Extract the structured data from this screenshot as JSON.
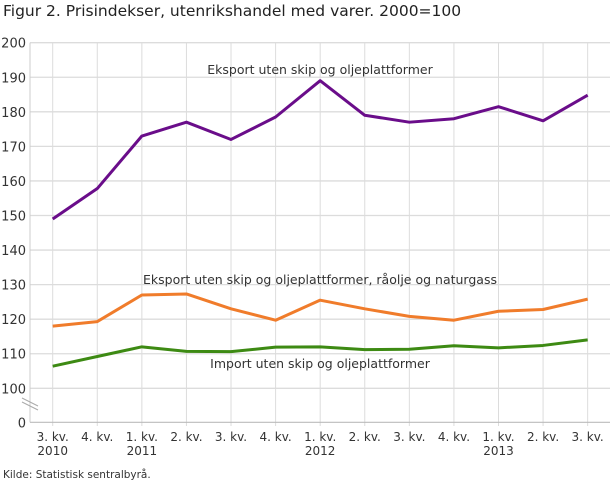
{
  "chart_data": {
    "type": "line",
    "title": "Figur 2. Prisindekser, utenrikshandel med varer. 2000=100",
    "source": "Kilde: Statistisk sentralbyrå.",
    "categories": [
      [
        "3. kv.",
        "2010"
      ],
      [
        "4. kv.",
        ""
      ],
      [
        "1. kv.",
        "2011"
      ],
      [
        "2. kv.",
        ""
      ],
      [
        "3. kv.",
        ""
      ],
      [
        "4. kv.",
        ""
      ],
      [
        "1. kv.",
        "2012"
      ],
      [
        "2. kv.",
        ""
      ],
      [
        "3. kv.",
        ""
      ],
      [
        "4. kv.",
        ""
      ],
      [
        "1. kv.",
        "2013"
      ],
      [
        "2. kv.",
        ""
      ],
      [
        "3. kv.",
        ""
      ]
    ],
    "yticks": [
      0,
      100,
      110,
      120,
      130,
      140,
      150,
      160,
      170,
      180,
      190,
      200
    ],
    "ylim": [
      0,
      200
    ],
    "axis_break": "between 0 and 100",
    "grid": true,
    "series": [
      {
        "name": "Eksport uten skip og oljeplattformer",
        "color": "#6a0d8a",
        "values": [
          149,
          157.8,
          173,
          177,
          172,
          178.5,
          189,
          179,
          177,
          178,
          181.5,
          177.4,
          184.8
        ]
      },
      {
        "name": "Eksport uten skip og oljeplattformer, råolje og naturgass",
        "color": "#f07c2b",
        "values": [
          118,
          119.3,
          127,
          127.3,
          123,
          119.7,
          125.5,
          123,
          120.8,
          119.7,
          122.3,
          122.8,
          125.8
        ]
      },
      {
        "name": "Import uten skip og oljeplattformer",
        "color": "#3d8a13",
        "values": [
          106.4,
          109.2,
          112,
          110.7,
          110.6,
          111.9,
          112,
          111.2,
          111.3,
          112.3,
          111.7,
          112.4,
          114
        ]
      }
    ]
  }
}
